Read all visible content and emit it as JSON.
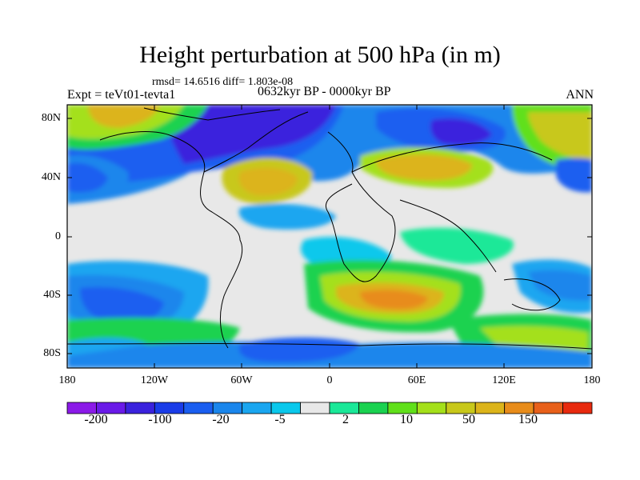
{
  "header": {
    "title": "Height perturbation at 500 hPa (in m)",
    "stats": "rmsd= 14.6516 diff= 1.803e-08",
    "experiment": "Expt = teVt01-tevta1",
    "period": "0632kyr BP - 0000kyr BP",
    "season": "ANN"
  },
  "map": {
    "lat_labels": [
      "80N",
      "40N",
      "0",
      "40S",
      "80S"
    ],
    "lon_labels": [
      "180",
      "120W",
      "60W",
      "0",
      "60E",
      "120E",
      "180"
    ]
  },
  "colorbar": {
    "colors": [
      "#8b1ae8",
      "#6a1ae8",
      "#3a22dd",
      "#1a3ce8",
      "#1a5ef0",
      "#1a86ec",
      "#1aa6f0",
      "#0ac8ec",
      "#e8e8e8",
      "#1ae898",
      "#1ad250",
      "#60e01a",
      "#a4e01a",
      "#c8c81a",
      "#dcb41a",
      "#e88c1a",
      "#e8601a",
      "#e82a0e"
    ],
    "labels": [
      "-200",
      "-100",
      "-20",
      "-5",
      "2",
      "10",
      "50",
      "150"
    ]
  }
}
